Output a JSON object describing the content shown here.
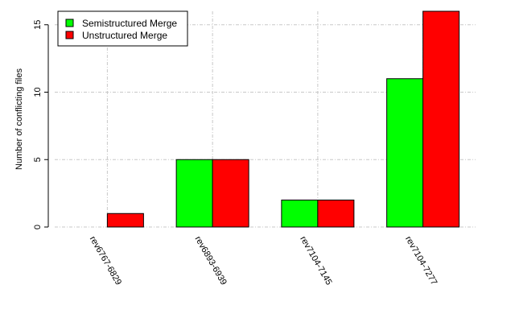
{
  "chart_data": {
    "type": "bar",
    "categories": [
      "rev6767-6829",
      "rev6893-6939",
      "rev7104-7145",
      "rev7104-7277"
    ],
    "series": [
      {
        "name": "Semistructured Merge",
        "color": "#00ff00",
        "values": [
          0,
          5,
          2,
          11
        ]
      },
      {
        "name": "Unstructured Merge",
        "color": "#ff0000",
        "values": [
          1,
          5,
          2,
          16
        ]
      }
    ],
    "ylabel": "Number of conflicting files",
    "xlabel": "",
    "ylim": [
      0,
      16
    ],
    "yticks": [
      0,
      5,
      10,
      15
    ],
    "grid": true,
    "legend": "top-left"
  }
}
